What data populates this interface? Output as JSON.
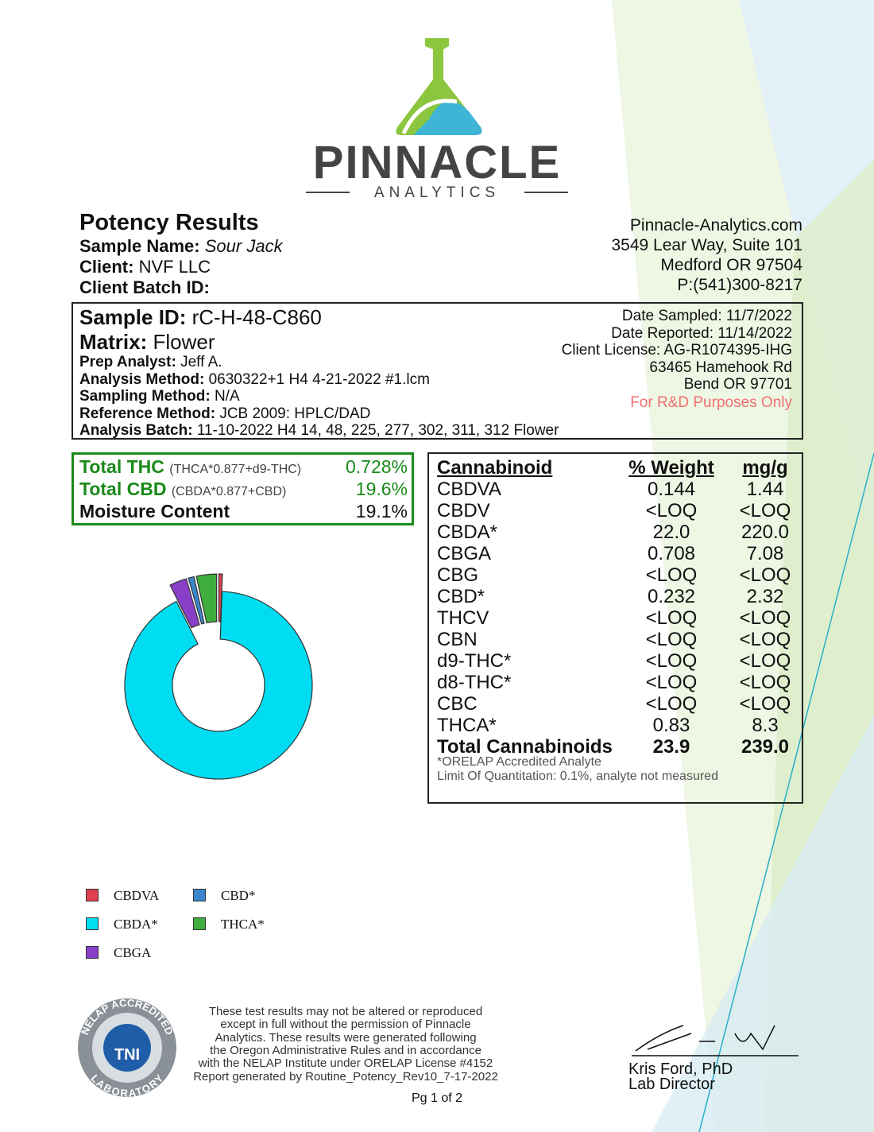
{
  "brand": {
    "name": "PINNACLE",
    "sub": "ANALYTICS"
  },
  "header": {
    "title": "Potency Results",
    "fields": [
      {
        "label": "Sample Name:",
        "value": "Sour Jack"
      },
      {
        "label": "Client:",
        "value": "NVF LLC"
      },
      {
        "label": "Client Batch ID:",
        "value": ""
      }
    ],
    "company": [
      "Pinnacle-Analytics.com",
      "3549 Lear Way, Suite 101",
      "Medford OR 97504",
      "P:(541)300-8217"
    ]
  },
  "info": {
    "sample_id": {
      "label": "Sample ID:",
      "value": "rC-H-48-C860"
    },
    "matrix": {
      "label": "Matrix:",
      "value": "Flower"
    },
    "fields": [
      {
        "label": "Prep Analyst:",
        "value": "Jeff A."
      },
      {
        "label": "Analysis Method:",
        "value": "0630322+1 H4 4-21-2022 #1.lcm"
      },
      {
        "label": "Sampling Method:",
        "value": "N/A"
      },
      {
        "label": "Reference Method:",
        "value": "JCB 2009: HPLC/DAD"
      },
      {
        "label": "Analysis Batch:",
        "value": "11-10-2022 H4 14, 48, 225, 277, 302, 311, 312 Flower"
      }
    ],
    "right": [
      "Date Sampled:  11/7/2022",
      "Date Reported: 11/14/2022",
      "Client License: AG-R1074395-IHG",
      "63465 Hamehook Rd",
      "Bend OR 97701"
    ],
    "note": "For R&D Purposes Only"
  },
  "summary": [
    {
      "label": "Total THC",
      "formula": "(THCA*0.877+d9-THC)",
      "value": "0.728%"
    },
    {
      "label": "Total CBD",
      "formula": "(CBDA*0.877+CBD)",
      "value": "19.6%"
    },
    {
      "label": "Moisture Content",
      "formula": "",
      "value": "19.1%"
    }
  ],
  "table": {
    "columns": [
      "Cannabinoid",
      "% Weight",
      "mg/g"
    ],
    "rows": [
      [
        "CBDVA",
        "0.144",
        "1.44"
      ],
      [
        "CBDV",
        "<LOQ",
        "<LOQ"
      ],
      [
        "CBDA*",
        "22.0",
        "220.0"
      ],
      [
        "CBGA",
        "0.708",
        "7.08"
      ],
      [
        "CBG",
        "<LOQ",
        "<LOQ"
      ],
      [
        "CBD*",
        "0.232",
        "2.32"
      ],
      [
        "THCV",
        "<LOQ",
        "<LOQ"
      ],
      [
        "CBN",
        "<LOQ",
        "<LOQ"
      ],
      [
        "d9-THC*",
        "<LOQ",
        "<LOQ"
      ],
      [
        "d8-THC*",
        "<LOQ",
        "<LOQ"
      ],
      [
        "CBC",
        "<LOQ",
        "<LOQ"
      ],
      [
        "THCA*",
        "0.83",
        "8.3"
      ]
    ],
    "total": [
      "Total Cannabinoids",
      "23.9",
      "239.0"
    ],
    "notes": [
      "*ORELAP Accredited Analyte",
      "Limit Of Quantitation: 0.1%, analyte not measured"
    ]
  },
  "chart_data": {
    "type": "pie",
    "categories": [
      "CBDVA",
      "CBDA*",
      "CBGA",
      "CBD*",
      "THCA*"
    ],
    "values": [
      0.144,
      22,
      0.708,
      0.232,
      0.83
    ],
    "colors": [
      "#e0404f",
      "#00dcf2",
      "#8a3fc8",
      "#3a86cc",
      "#3fae3f"
    ]
  },
  "footer": {
    "badge": [
      "NELAP ACCREDITED",
      "TNI",
      "LABORATORY"
    ],
    "disclaimer": [
      "These test results may not be altered or reproduced",
      "except in full without the permission of Pinnacle",
      "Analytics. These results were generated following",
      "the Oregon Administrative Rules and in accordance",
      "with the NELAP Institute under ORELAP License #4152",
      "Report generated by Routine_Potency_Rev10_7-17-2022"
    ],
    "signer": "Kris Ford, PhD",
    "signer_title": "Lab Director",
    "page": "Pg 1 of 2"
  }
}
